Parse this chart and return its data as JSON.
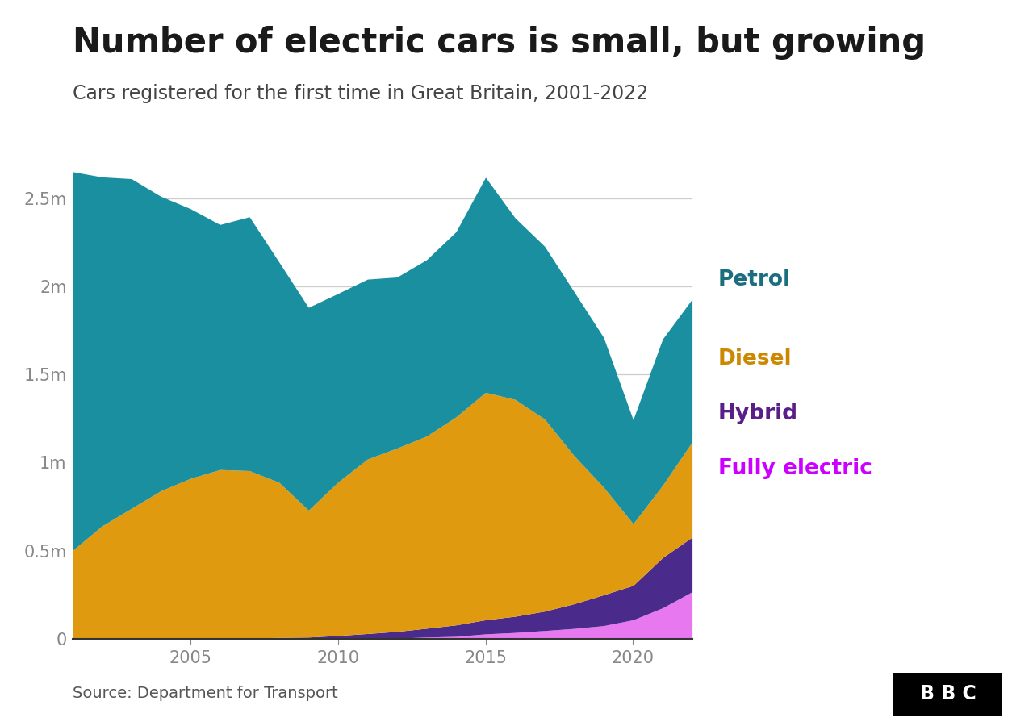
{
  "title": "Number of electric cars is small, but growing",
  "subtitle": "Cars registered for the first time in Great Britain, 2001-2022",
  "source": "Source: Department for Transport",
  "years": [
    2001,
    2002,
    2003,
    2004,
    2005,
    2006,
    2007,
    2008,
    2009,
    2010,
    2011,
    2012,
    2013,
    2014,
    2015,
    2016,
    2017,
    2018,
    2019,
    2020,
    2021,
    2022
  ],
  "fully_electric": [
    0,
    0,
    0,
    0,
    0,
    0,
    0,
    0,
    0,
    1000,
    2000,
    4000,
    10000,
    14000,
    28000,
    36000,
    47000,
    59000,
    75000,
    108000,
    176000,
    267000
  ],
  "hybrid": [
    0,
    0,
    0,
    0,
    0,
    0,
    4000,
    8000,
    10000,
    18000,
    28000,
    38000,
    50000,
    65000,
    80000,
    92000,
    110000,
    140000,
    175000,
    195000,
    285000,
    310000
  ],
  "diesel": [
    500000,
    640000,
    740000,
    840000,
    910000,
    960000,
    950000,
    880000,
    720000,
    870000,
    990000,
    1040000,
    1090000,
    1180000,
    1290000,
    1230000,
    1090000,
    840000,
    610000,
    350000,
    410000,
    540000
  ],
  "petrol": [
    2150000,
    1980000,
    1870000,
    1670000,
    1530000,
    1390000,
    1440000,
    1250000,
    1150000,
    1070000,
    1020000,
    970000,
    1000000,
    1050000,
    1220000,
    1030000,
    980000,
    930000,
    850000,
    590000,
    830000,
    810000
  ],
  "colors": {
    "petrol": "#1a8fa0",
    "diesel": "#e09a10",
    "hybrid": "#4a2a8a",
    "fully_electric": "#e878f0"
  },
  "legend_colors": {
    "petrol": "#1a6e80",
    "diesel": "#cc8800",
    "hybrid": "#5a1e8a",
    "fully_electric": "#cc00ff"
  },
  "legend_labels": {
    "petrol": "Petrol",
    "diesel": "Diesel",
    "hybrid": "Hybrid",
    "fully_electric": "Fully electric"
  },
  "ylim": [
    0,
    2800000
  ],
  "yticks": [
    0,
    500000,
    1000000,
    1500000,
    2000000,
    2500000
  ],
  "ytick_labels": [
    "0",
    "0.5m",
    "1m",
    "1.5m",
    "2m",
    "2.5m"
  ],
  "xticks": [
    2005,
    2010,
    2015,
    2020
  ],
  "background_color": "#ffffff",
  "grid_color": "#cccccc",
  "title_fontsize": 30,
  "subtitle_fontsize": 17,
  "tick_fontsize": 15,
  "legend_fontsize": 19,
  "source_fontsize": 14
}
